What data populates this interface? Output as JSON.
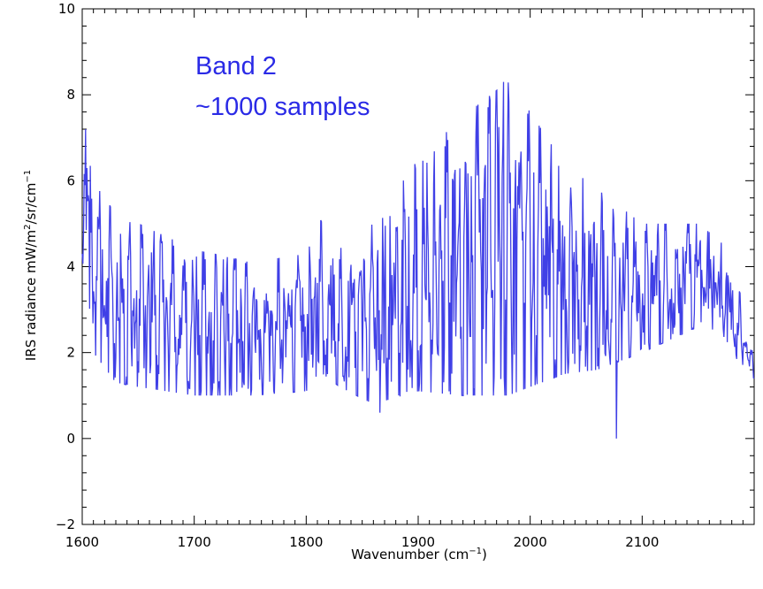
{
  "chart_data": {
    "type": "line",
    "title": "",
    "xlabel": "Wavenumber (cm",
    "xlabel_sup": "−1",
    "xlabel_end": ")",
    "ylabel_parts": [
      "IRS radiance mW/m",
      "2",
      "/sr/cm",
      "−1"
    ],
    "xlim": [
      1600,
      2200
    ],
    "ylim": [
      -2,
      10
    ],
    "x_ticks": [
      1600,
      1700,
      1800,
      1900,
      2000,
      2100
    ],
    "x_tick_labels": [
      "1600",
      "1700",
      "1800",
      "1900",
      "2000",
      "2100"
    ],
    "y_ticks": [
      -2,
      0,
      2,
      4,
      6,
      8,
      10
    ],
    "y_tick_labels": [
      "−2",
      "0",
      "2",
      "4",
      "6",
      "8",
      "10"
    ],
    "grid": false,
    "annotations": [
      "Band 2",
      "~1000 samples"
    ],
    "series": [
      {
        "color": "#4040e6",
        "x_start": 1600,
        "x_step": 0.6,
        "envelope": {
          "x": [
            1600,
            1610,
            1630,
            1650,
            1700,
            1750,
            1800,
            1815,
            1830,
            1860,
            1900,
            1940,
            1980,
            2000,
            2030,
            2060,
            2100,
            2150,
            2170,
            2190,
            2200
          ],
          "upper": [
            7.2,
            6.3,
            5.1,
            5.0,
            4.4,
            4.1,
            4.3,
            5.2,
            4.5,
            5.0,
            6.5,
            7.5,
            8.3,
            7.6,
            6.4,
            5.8,
            5.0,
            5.0,
            4.6,
            3.2,
            1.8
          ],
          "lower": [
            4.2,
            2.0,
            1.3,
            1.2,
            1.0,
            1.0,
            1.1,
            1.5,
            1.2,
            0.8,
            1.1,
            1.0,
            1.0,
            1.2,
            1.5,
            1.6,
            2.0,
            2.6,
            2.5,
            1.6,
            1.3
          ]
        },
        "extreme_points": [
          {
            "x": 1600,
            "y": 4.3
          },
          {
            "x": 1603,
            "y": 7.2
          },
          {
            "x": 1976,
            "y": 8.3
          },
          {
            "x": 2077,
            "y": 0.0
          },
          {
            "x": 1866,
            "y": 0.6
          },
          {
            "x": 2200,
            "y": 1.4
          }
        ]
      }
    ]
  }
}
